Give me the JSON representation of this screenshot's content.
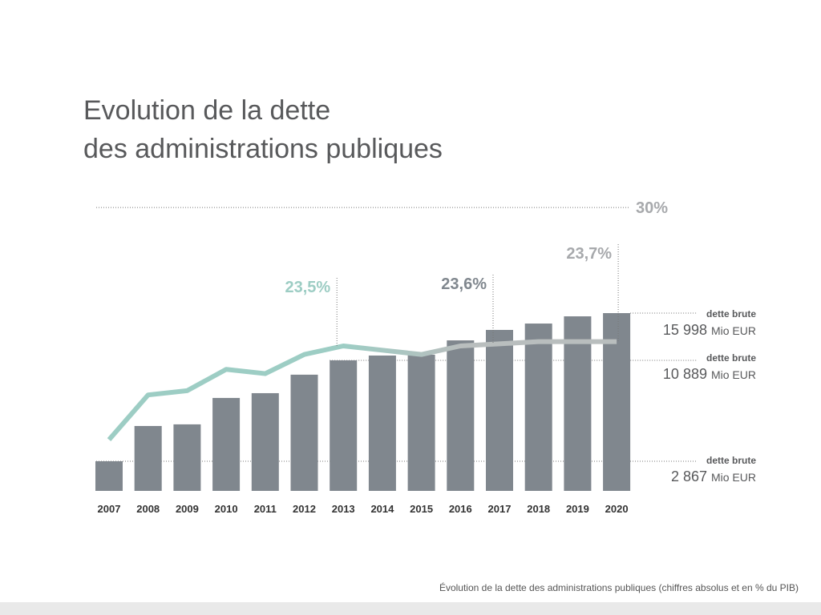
{
  "title_line1": "Evolution de la dette",
  "title_line2": "des administrations publiques",
  "caption": "Évolution de la dette des administrations publiques (chiffres absolus et en % du PIB)",
  "chart_data": {
    "type": "bar",
    "categories": [
      "2007",
      "2008",
      "2009",
      "2010",
      "2011",
      "2012",
      "2013",
      "2014",
      "2015",
      "2016",
      "2017",
      "2018",
      "2019",
      "2020"
    ],
    "series": [
      {
        "type": "bar",
        "unit": "Mio EUR",
        "values": [
          2867,
          5670,
          5800,
          7900,
          8280,
          9750,
          10889,
          11410,
          11500,
          13050,
          14180,
          14870,
          15650,
          15998
        ],
        "color": "#80878e"
      },
      {
        "type": "line",
        "unit": "% du PIB",
        "values": [
          19.1,
          21.2,
          21.4,
          22.4,
          22.2,
          23.1,
          23.5,
          23.3,
          23.1,
          23.5,
          23.6,
          23.7,
          23.7,
          23.7
        ],
        "colors": {
          "start": "#9dcdc4",
          "end": "#b9bebe"
        }
      }
    ],
    "reference_line": {
      "label": "30%",
      "value": 30
    },
    "percent_annotations": [
      {
        "label": "23,5%",
        "year": "2013",
        "value": 23.5,
        "color": "#9dcdc4"
      },
      {
        "label": "23,6%",
        "year": "2017",
        "value": 23.6,
        "color": "#80878e"
      },
      {
        "label": "23,7%",
        "year": "2020",
        "value": 23.7,
        "color": "#a7a9ac"
      }
    ],
    "debt_annotations": [
      {
        "label": "dette brute",
        "amount": "15 998",
        "unit": "Mio EUR",
        "value": 15998
      },
      {
        "label": "dette brute",
        "amount": "10 889",
        "unit": "Mio EUR",
        "value": 10889
      },
      {
        "label": "dette brute",
        "amount": "2 867",
        "unit": "Mio EUR",
        "value": 2867
      }
    ]
  }
}
